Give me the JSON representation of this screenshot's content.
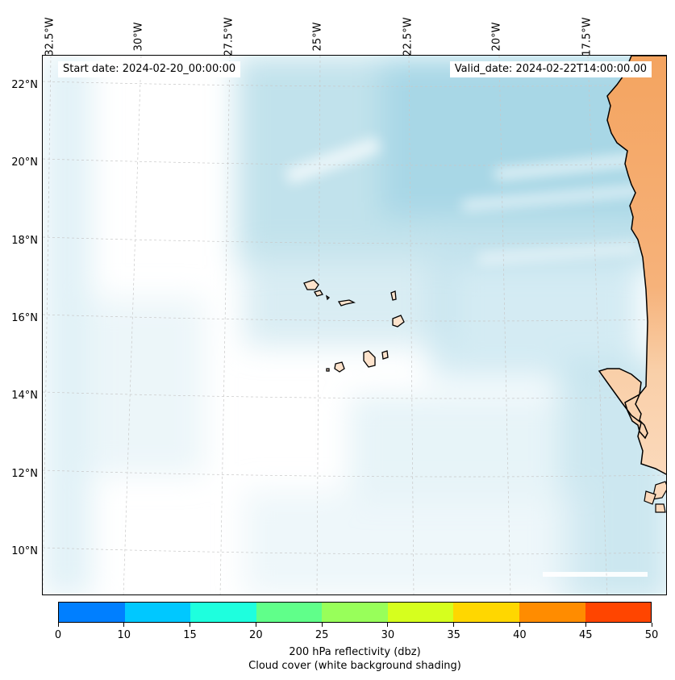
{
  "map": {
    "start_date_label": "Start date: 2024-02-20_00:00:00",
    "valid_date_label": "Valid_date: 2024-02-22T14:00:00.00",
    "longitude_labels": [
      "32.5°W",
      "30°W",
      "27.5°W",
      "25°W",
      "22.5°W",
      "20°W",
      "17.5°W"
    ],
    "latitude_labels": [
      "22°N",
      "20°N",
      "18°N",
      "16°N",
      "14°N",
      "12°N",
      "10°N"
    ],
    "land_color": "#f4a460",
    "land_light_color": "#fde3cc",
    "ocean_cloud_color": "#add8e6",
    "coastline_color": "#000000",
    "gridline_color": "#b0b0b0"
  },
  "colorbar": {
    "ticks": [
      "0",
      "10",
      "15",
      "20",
      "25",
      "30",
      "35",
      "40",
      "45",
      "50"
    ],
    "colors": [
      "#007fff",
      "#00c8ff",
      "#1effde",
      "#60ff8a",
      "#98ff5a",
      "#d6ff1e",
      "#ffd700",
      "#ff8c00",
      "#ff4500"
    ],
    "title_line1": "200 hPa reflectivity (dbz)",
    "title_line2": "Cloud cover (white background shading)"
  }
}
